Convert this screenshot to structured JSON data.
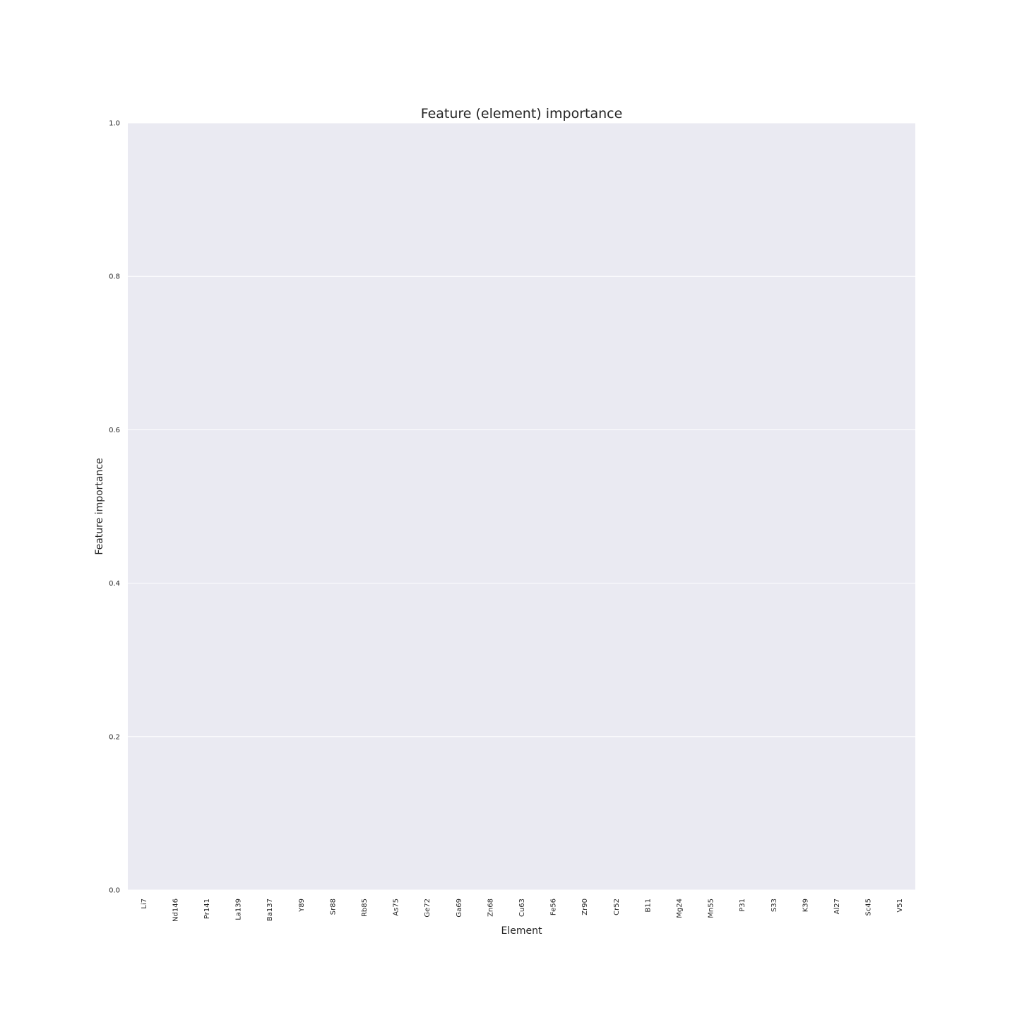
{
  "chart_data": {
    "type": "bar",
    "title": "Feature (element) importance",
    "xlabel": "Element",
    "ylabel": "Feature importance",
    "categories": [
      "Li7",
      "Nd146",
      "Pr141",
      "La139",
      "Ba137",
      "Y89",
      "Sr88",
      "Rb85",
      "As75",
      "Ge72",
      "Ga69",
      "Zn68",
      "Cu63",
      "Fe56",
      "Zr90",
      "Cr52",
      "B11",
      "Mg24",
      "Mn55",
      "P31",
      "S33",
      "K39",
      "Al27",
      "Sc45",
      "V51"
    ],
    "values": [
      0,
      0,
      0,
      0,
      0,
      0,
      0,
      0,
      0,
      0,
      0,
      0,
      0,
      0,
      0,
      0,
      0,
      0,
      0,
      0,
      0,
      0,
      0,
      0,
      0
    ],
    "yticks": [
      "0.0",
      "0.2",
      "0.4",
      "0.6",
      "0.8",
      "1.0"
    ],
    "ylim": [
      0,
      1
    ],
    "grid": true,
    "colors": {
      "plot_background": "#eaeaf2",
      "grid": "#ffffff",
      "text": "#262626"
    }
  }
}
